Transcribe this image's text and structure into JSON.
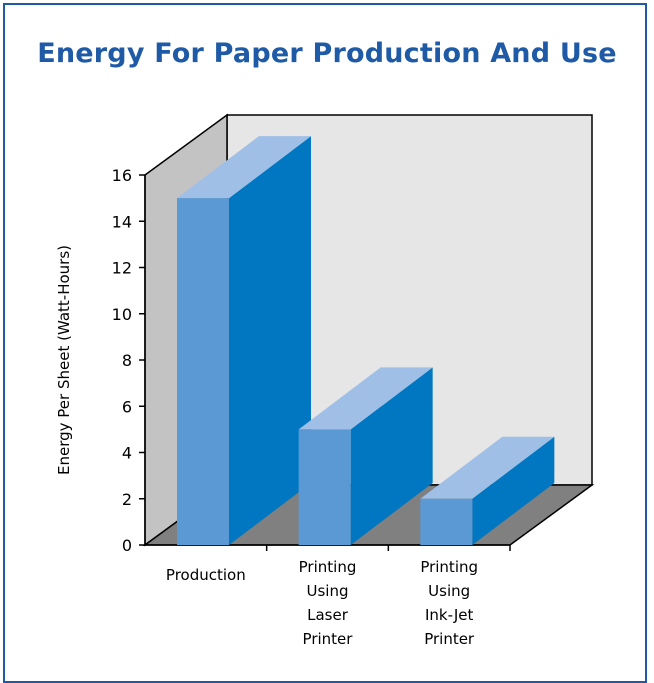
{
  "colors": {
    "frame": "#1e5aa6",
    "title": "#1e5aa6",
    "bar_front": "#5b99d4",
    "bar_top": "#9fbfe6",
    "bar_side": "#0077c0",
    "back_wall": "#e6e6e6",
    "side_wall": "#c3c3c3",
    "floor": "#808080"
  },
  "chart_data": {
    "type": "bar",
    "title": "Energy For Paper Production And Use",
    "ylabel": "Energy Per Sheet (Watt-Hours)",
    "xlabel": "",
    "ylim": [
      0,
      16
    ],
    "yticks": [
      0,
      2,
      4,
      6,
      8,
      10,
      12,
      14,
      16
    ],
    "categories": [
      [
        "Production"
      ],
      [
        "Printing",
        "Using",
        "Laser",
        "Printer"
      ],
      [
        "Printing",
        "Using",
        "Ink-Jet",
        "Printer"
      ]
    ],
    "values": [
      15,
      5,
      2
    ],
    "grid": false,
    "legend": "none",
    "style": "3d"
  }
}
